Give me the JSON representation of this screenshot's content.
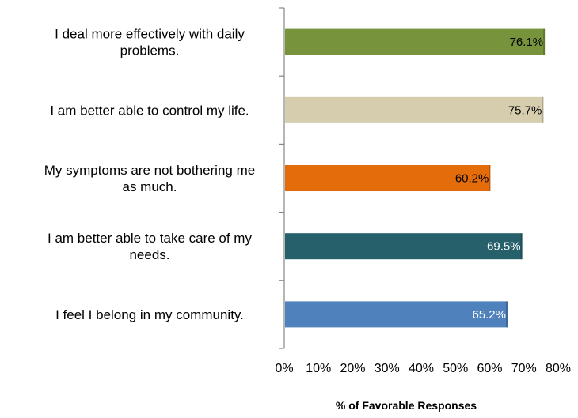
{
  "chart_data": {
    "type": "bar",
    "orientation": "horizontal",
    "categories": [
      [
        "I deal more effectively with daily",
        "problems."
      ],
      [
        "I am better able to control my life."
      ],
      [
        "My symptoms are not bothering me",
        "as much."
      ],
      [
        "I am better able to take care of my",
        "needs."
      ],
      [
        "I feel I belong in my community."
      ]
    ],
    "values": [
      76.1,
      75.7,
      60.2,
      69.5,
      65.2
    ],
    "value_labels": [
      "76.1%",
      "75.7%",
      "60.2%",
      "69.5%",
      "65.2%"
    ],
    "bar_colors": [
      "#77933c",
      "#d5cdae",
      "#e46c0a",
      "#26606b",
      "#4f81bd"
    ],
    "label_colors": [
      "#000000",
      "#000000",
      "#000000",
      "#ffffff",
      "#ffffff"
    ],
    "xlabel": "% of Favorable Responses",
    "xlim": [
      0,
      80
    ],
    "xticks": [
      0,
      10,
      20,
      30,
      40,
      50,
      60,
      70,
      80
    ],
    "xtick_labels": [
      "0%",
      "10%",
      "20%",
      "30%",
      "40%",
      "50%",
      "60%",
      "70%",
      "80%"
    ],
    "grid": false,
    "legend": "none"
  }
}
